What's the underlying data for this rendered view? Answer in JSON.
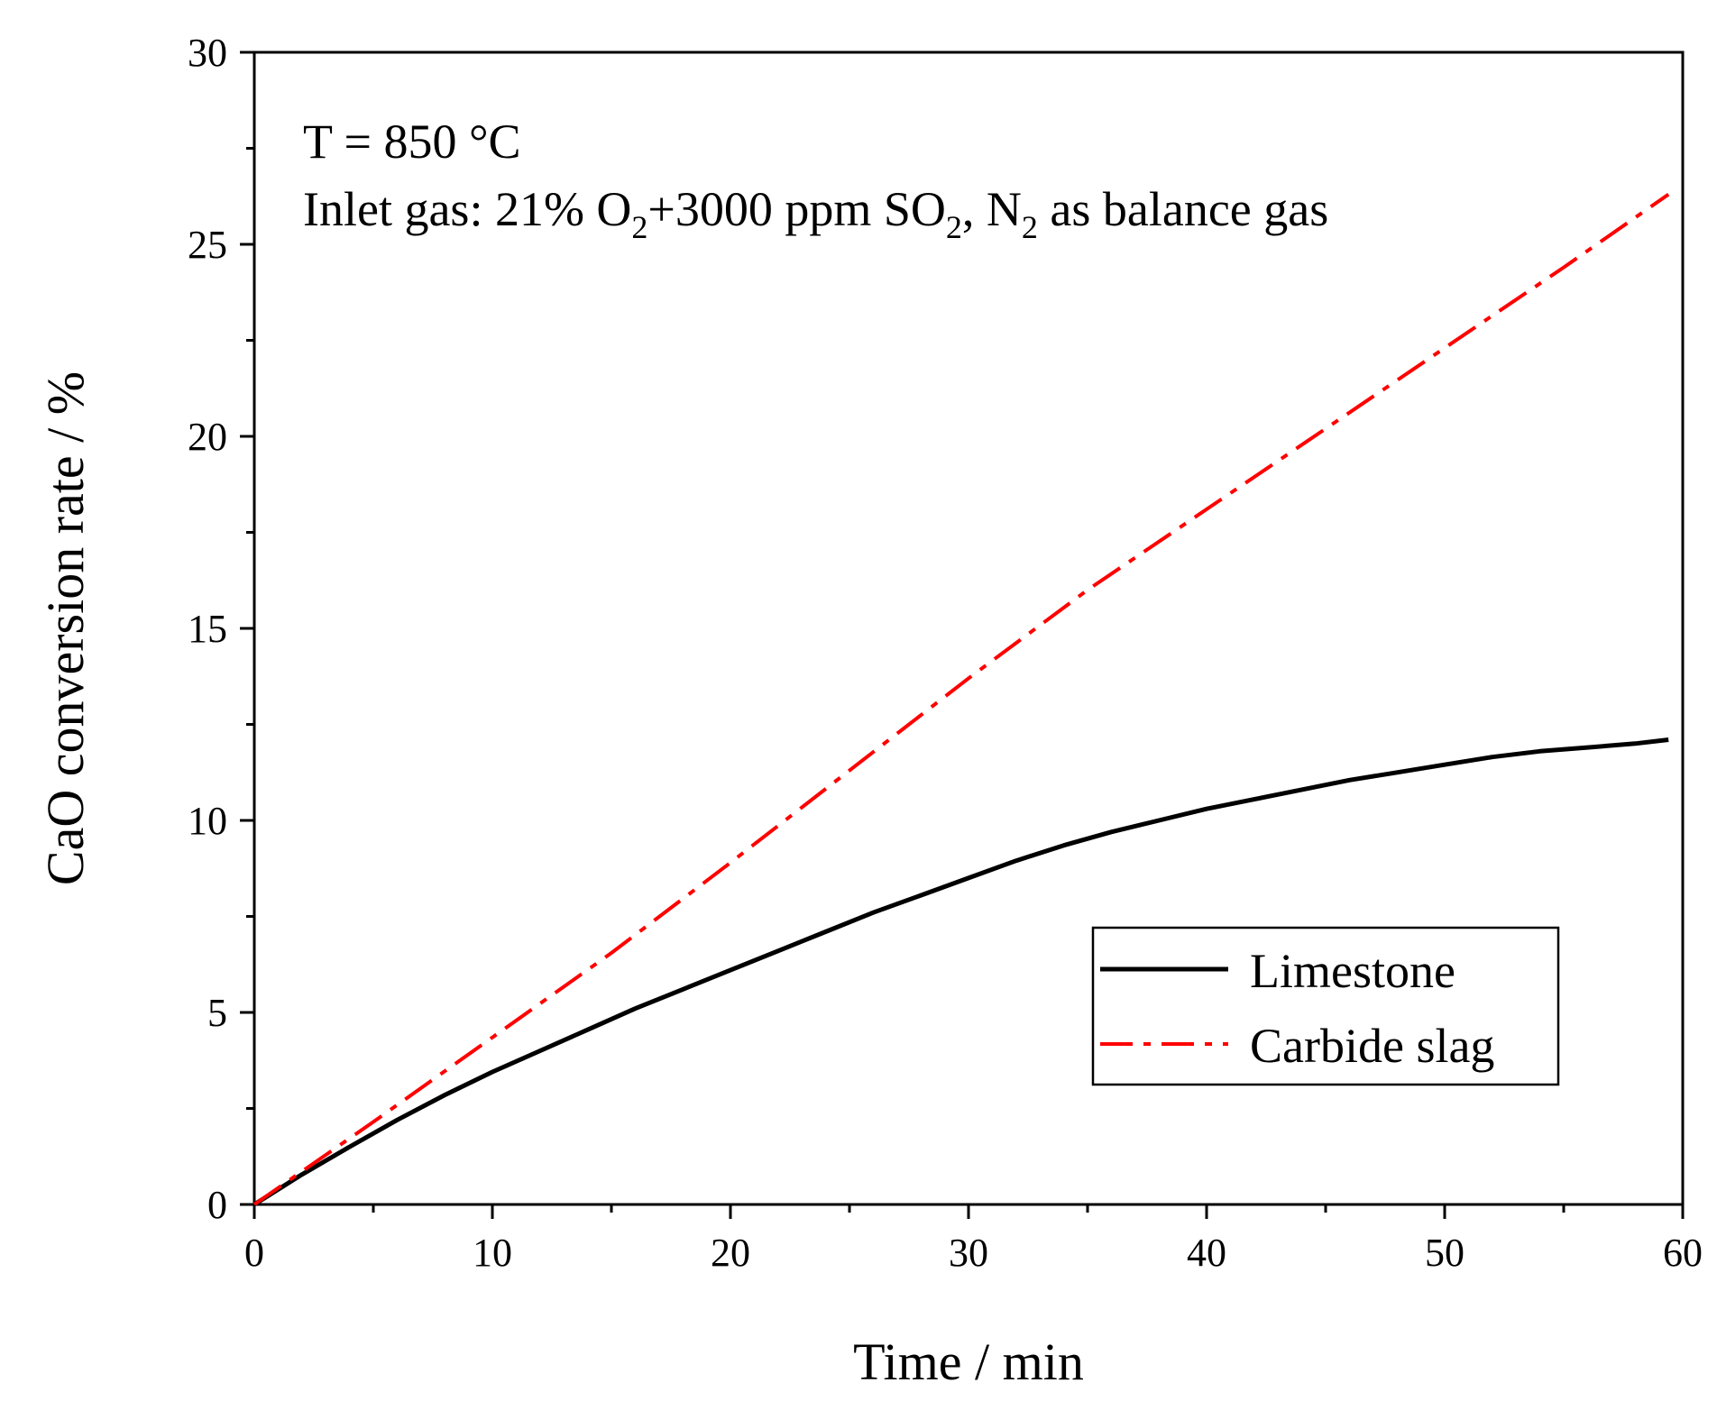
{
  "chart_data": {
    "type": "line",
    "title": "",
    "xlabel": "Time / min",
    "ylabel": "CaO conversion rate / %",
    "xlim": [
      0,
      60
    ],
    "ylim": [
      0,
      30
    ],
    "xticks": [
      0,
      10,
      20,
      30,
      40,
      50,
      60
    ],
    "yticks": [
      0,
      5,
      10,
      15,
      20,
      25,
      30
    ],
    "xtick_labels": [
      "0",
      "10",
      "20",
      "30",
      "40",
      "50",
      "60"
    ],
    "ytick_labels": [
      "0",
      "5",
      "10",
      "15",
      "20",
      "25",
      "30"
    ],
    "annotations": {
      "temperature": "T = 850 °C",
      "gas": {
        "prefix": "Inlet gas: 21% O",
        "sub1": "2",
        "mid1": "+3000 ppm SO",
        "sub2": "2",
        "mid2": ", N",
        "sub3": "2",
        "suffix": " as balance gas"
      }
    },
    "legend_position": "lower-right",
    "series": [
      {
        "name": "Limestone",
        "color": "#000000",
        "style": "solid",
        "x": [
          0,
          2,
          4,
          6,
          8,
          10,
          12,
          14,
          16,
          18,
          20,
          22,
          24,
          26,
          28,
          30,
          32,
          34,
          36,
          38,
          40,
          42,
          44,
          46,
          48,
          50,
          52,
          54,
          56,
          58,
          59.4
        ],
        "y": [
          0,
          0.78,
          1.5,
          2.2,
          2.85,
          3.45,
          4.0,
          4.55,
          5.1,
          5.6,
          6.1,
          6.6,
          7.1,
          7.6,
          8.05,
          8.5,
          8.95,
          9.35,
          9.7,
          10.0,
          10.3,
          10.55,
          10.8,
          11.05,
          11.25,
          11.45,
          11.65,
          11.8,
          11.9,
          12.0,
          12.1
        ]
      },
      {
        "name": "Carbide slag",
        "color": "#ff0000",
        "style": "dashdot",
        "x": [
          0,
          5,
          10,
          15,
          20,
          25,
          30,
          35,
          40,
          45,
          50,
          55,
          59.4
        ],
        "y": [
          0,
          2.15,
          4.35,
          6.55,
          8.9,
          11.3,
          13.7,
          16.0,
          18.1,
          20.2,
          22.3,
          24.4,
          26.3
        ]
      }
    ]
  }
}
